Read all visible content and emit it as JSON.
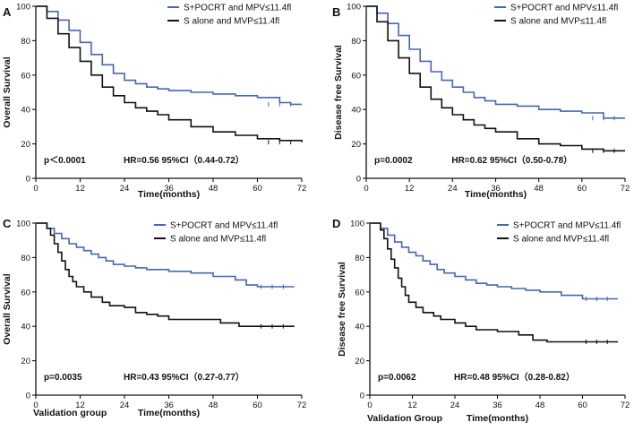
{
  "colors": {
    "blue": "#4468b0",
    "black": "#111111"
  },
  "chart_data": [
    {
      "type": "line",
      "panel": "A",
      "xlabel": "Time(months)",
      "ylabel": "Overall Survival",
      "xlim": [
        0,
        72
      ],
      "ylim": [
        0,
        100
      ],
      "xticks": [
        "0",
        "12",
        "24",
        "36",
        "48",
        "60",
        "72"
      ],
      "yticks": [
        "0",
        "20",
        "40",
        "60",
        "80",
        "100"
      ],
      "xtick_values": [
        0,
        12,
        24,
        36,
        48,
        60,
        72
      ],
      "ytick_values": [
        0,
        20,
        40,
        60,
        80,
        100
      ],
      "p_text": "p＜0.0001",
      "hr_text": "HR=0.56 95%CI（0.44-0.72）",
      "group_label": "",
      "legend": [
        {
          "name": "S+POCRT and MPV≤11.4fl",
          "color": "#4468b0"
        },
        {
          "name": "S alone and MVP≤11.4fl",
          "color": "#111111"
        }
      ],
      "series": [
        {
          "name": "S+POCRT and MPV≤11.4fl",
          "color": "#4468b0",
          "x": [
            0,
            3,
            6,
            9,
            12,
            15,
            18,
            21,
            24,
            27,
            30,
            33,
            36,
            42,
            48,
            54,
            60,
            66,
            69,
            72
          ],
          "y": [
            100,
            97,
            92,
            86,
            79,
            72,
            66,
            61,
            57,
            55,
            53,
            52,
            51,
            50,
            49,
            48,
            47,
            44,
            43,
            43
          ]
        },
        {
          "name": "S alone and MVP≤11.4fl",
          "color": "#111111",
          "x": [
            0,
            3,
            6,
            9,
            12,
            15,
            18,
            21,
            24,
            27,
            30,
            33,
            36,
            42,
            48,
            54,
            60,
            66,
            72
          ],
          "y": [
            100,
            93,
            84,
            76,
            68,
            60,
            53,
            48,
            44,
            41,
            39,
            37,
            34,
            30,
            27,
            25,
            23,
            22,
            21
          ]
        }
      ]
    },
    {
      "type": "line",
      "panel": "B",
      "xlabel": "Time(months)",
      "ylabel": "Disease free Survival",
      "xlim": [
        0,
        72
      ],
      "ylim": [
        0,
        100
      ],
      "xticks": [
        "0",
        "12",
        "24",
        "36",
        "48",
        "60",
        "72"
      ],
      "yticks": [
        "0",
        "20",
        "40",
        "60",
        "80",
        "100"
      ],
      "xtick_values": [
        0,
        12,
        24,
        36,
        48,
        60,
        72
      ],
      "ytick_values": [
        0,
        20,
        40,
        60,
        80,
        100
      ],
      "p_text": "p=0.0002",
      "hr_text": "HR=0.62 95%CI（0.50-0.78）",
      "group_label": "",
      "legend": [
        {
          "name": "S+POCRT and MPV≤11.4fl",
          "color": "#4468b0"
        },
        {
          "name": "S alone and MVP≤11.4fl",
          "color": "#111111"
        }
      ],
      "series": [
        {
          "name": "S+POCRT and MPV≤11.4fl",
          "color": "#4468b0",
          "x": [
            0,
            3,
            6,
            9,
            12,
            15,
            18,
            21,
            24,
            27,
            30,
            33,
            36,
            42,
            48,
            54,
            60,
            66,
            72
          ],
          "y": [
            100,
            96,
            90,
            83,
            75,
            68,
            62,
            57,
            53,
            50,
            47,
            45,
            43,
            42,
            40,
            39,
            38,
            35,
            35
          ]
        },
        {
          "name": "S alone and MVP≤11.4fl",
          "color": "#111111",
          "x": [
            0,
            3,
            6,
            9,
            12,
            15,
            18,
            21,
            24,
            27,
            30,
            33,
            36,
            42,
            48,
            54,
            60,
            66,
            72
          ],
          "y": [
            100,
            91,
            80,
            70,
            61,
            53,
            46,
            41,
            37,
            34,
            31,
            29,
            27,
            23,
            20,
            19,
            17,
            16,
            16
          ]
        }
      ]
    },
    {
      "type": "line",
      "panel": "C",
      "xlabel": "Time(months)",
      "ylabel": "Overall Survival",
      "xlim": [
        0,
        72
      ],
      "ylim": [
        0,
        100
      ],
      "xticks": [
        "0",
        "12",
        "24",
        "36",
        "48",
        "60",
        "72"
      ],
      "yticks": [
        "0",
        "20",
        "40",
        "60",
        "80",
        "100"
      ],
      "xtick_values": [
        0,
        12,
        24,
        36,
        48,
        60,
        72
      ],
      "ytick_values": [
        0,
        20,
        40,
        60,
        80,
        100
      ],
      "p_text": "p=0.0035",
      "hr_text": "HR=0.43 95%CI（0.27-0.77）",
      "group_label": "Validation group",
      "legend": [
        {
          "name": "S+POCRT and MPV≤11.4fl",
          "color": "#4468b0"
        },
        {
          "name": "S alone and MVP≤11.4fl",
          "color": "#111111"
        }
      ],
      "series": [
        {
          "name": "S+POCRT and MPV≤11.4fl",
          "color": "#4468b0",
          "x": [
            0,
            3,
            5,
            7,
            9,
            11,
            13,
            15,
            17,
            19,
            21,
            24,
            27,
            30,
            36,
            42,
            48,
            54,
            57,
            60,
            66,
            70
          ],
          "y": [
            100,
            97,
            94,
            91,
            88,
            86,
            84,
            82,
            80,
            78,
            76,
            75,
            74,
            73,
            72,
            71,
            69,
            67,
            64,
            63,
            63,
            63
          ]
        },
        {
          "name": "S alone and MVP≤11.4fl",
          "color": "#111111",
          "x": [
            0,
            3,
            4,
            5,
            6,
            7,
            8,
            9,
            10,
            11,
            13,
            15,
            18,
            20,
            24,
            27,
            30,
            33,
            36,
            42,
            50,
            55,
            60,
            66,
            70
          ],
          "y": [
            100,
            97,
            93,
            88,
            83,
            78,
            73,
            69,
            66,
            63,
            60,
            57,
            54,
            52,
            51,
            48,
            47,
            46,
            44,
            44,
            42,
            40,
            40,
            40,
            40
          ]
        }
      ]
    },
    {
      "type": "line",
      "panel": "D",
      "xlabel": "Time(months)",
      "ylabel": "Disease free Survival",
      "xlim": [
        0,
        72
      ],
      "ylim": [
        0,
        100
      ],
      "xticks": [
        "0",
        "12",
        "24",
        "36",
        "48",
        "60",
        "72"
      ],
      "yticks": [
        "0",
        "20",
        "40",
        "60",
        "80",
        "100"
      ],
      "xtick_values": [
        0,
        12,
        24,
        36,
        48,
        60,
        72
      ],
      "ytick_values": [
        0,
        20,
        40,
        60,
        80,
        100
      ],
      "p_text": "p=0.0062",
      "hr_text": "HR=0.48 95%CI（0.28-0.82）",
      "group_label": "Validation Group",
      "legend": [
        {
          "name": "S+POCRT and MPV≤11.4fl",
          "color": "#4468b0"
        },
        {
          "name": "S alone and MVP≤11.4fl",
          "color": "#111111"
        }
      ],
      "series": [
        {
          "name": "S+POCRT and MPV≤11.4fl",
          "color": "#4468b0",
          "x": [
            0,
            3,
            5,
            7,
            9,
            11,
            13,
            15,
            17,
            19,
            21,
            24,
            27,
            30,
            33,
            36,
            40,
            44,
            48,
            54,
            60,
            66,
            70
          ],
          "y": [
            100,
            97,
            93,
            89,
            86,
            83,
            81,
            78,
            76,
            73,
            71,
            69,
            67,
            65,
            64,
            63,
            62,
            61,
            60,
            58,
            56,
            56,
            56
          ]
        },
        {
          "name": "S alone and MVP≤11.4fl",
          "color": "#111111",
          "x": [
            0,
            3,
            4,
            5,
            6,
            7,
            8,
            9,
            10,
            11,
            13,
            15,
            18,
            20,
            24,
            27,
            30,
            36,
            42,
            46,
            50,
            60,
            66,
            70
          ],
          "y": [
            100,
            96,
            91,
            85,
            79,
            74,
            68,
            63,
            58,
            54,
            51,
            48,
            46,
            44,
            42,
            40,
            38,
            37,
            35,
            32,
            31,
            31,
            31,
            31
          ]
        }
      ]
    }
  ]
}
